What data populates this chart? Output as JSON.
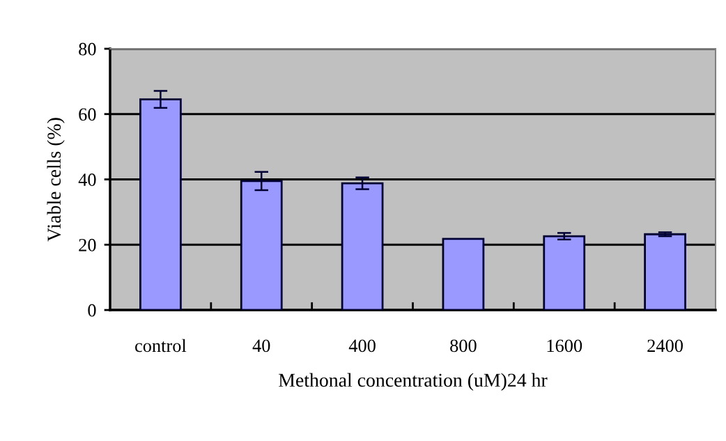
{
  "chart_data": {
    "type": "bar",
    "xlabel": "Methonal concentration (uM)24 hr",
    "ylabel": "Viable cells (%)",
    "categories": [
      "control",
      "40",
      "400",
      "800",
      "1600",
      "2400"
    ],
    "values": [
      64.5,
      39.5,
      38.8,
      21.8,
      22.6,
      23.2
    ],
    "errors": [
      2.6,
      2.8,
      1.8,
      null,
      1.0,
      0.6
    ],
    "color": "#9999ff",
    "ylim": [
      0,
      80
    ],
    "yticks": [
      0,
      20,
      40,
      60,
      80
    ],
    "grid": "y"
  }
}
